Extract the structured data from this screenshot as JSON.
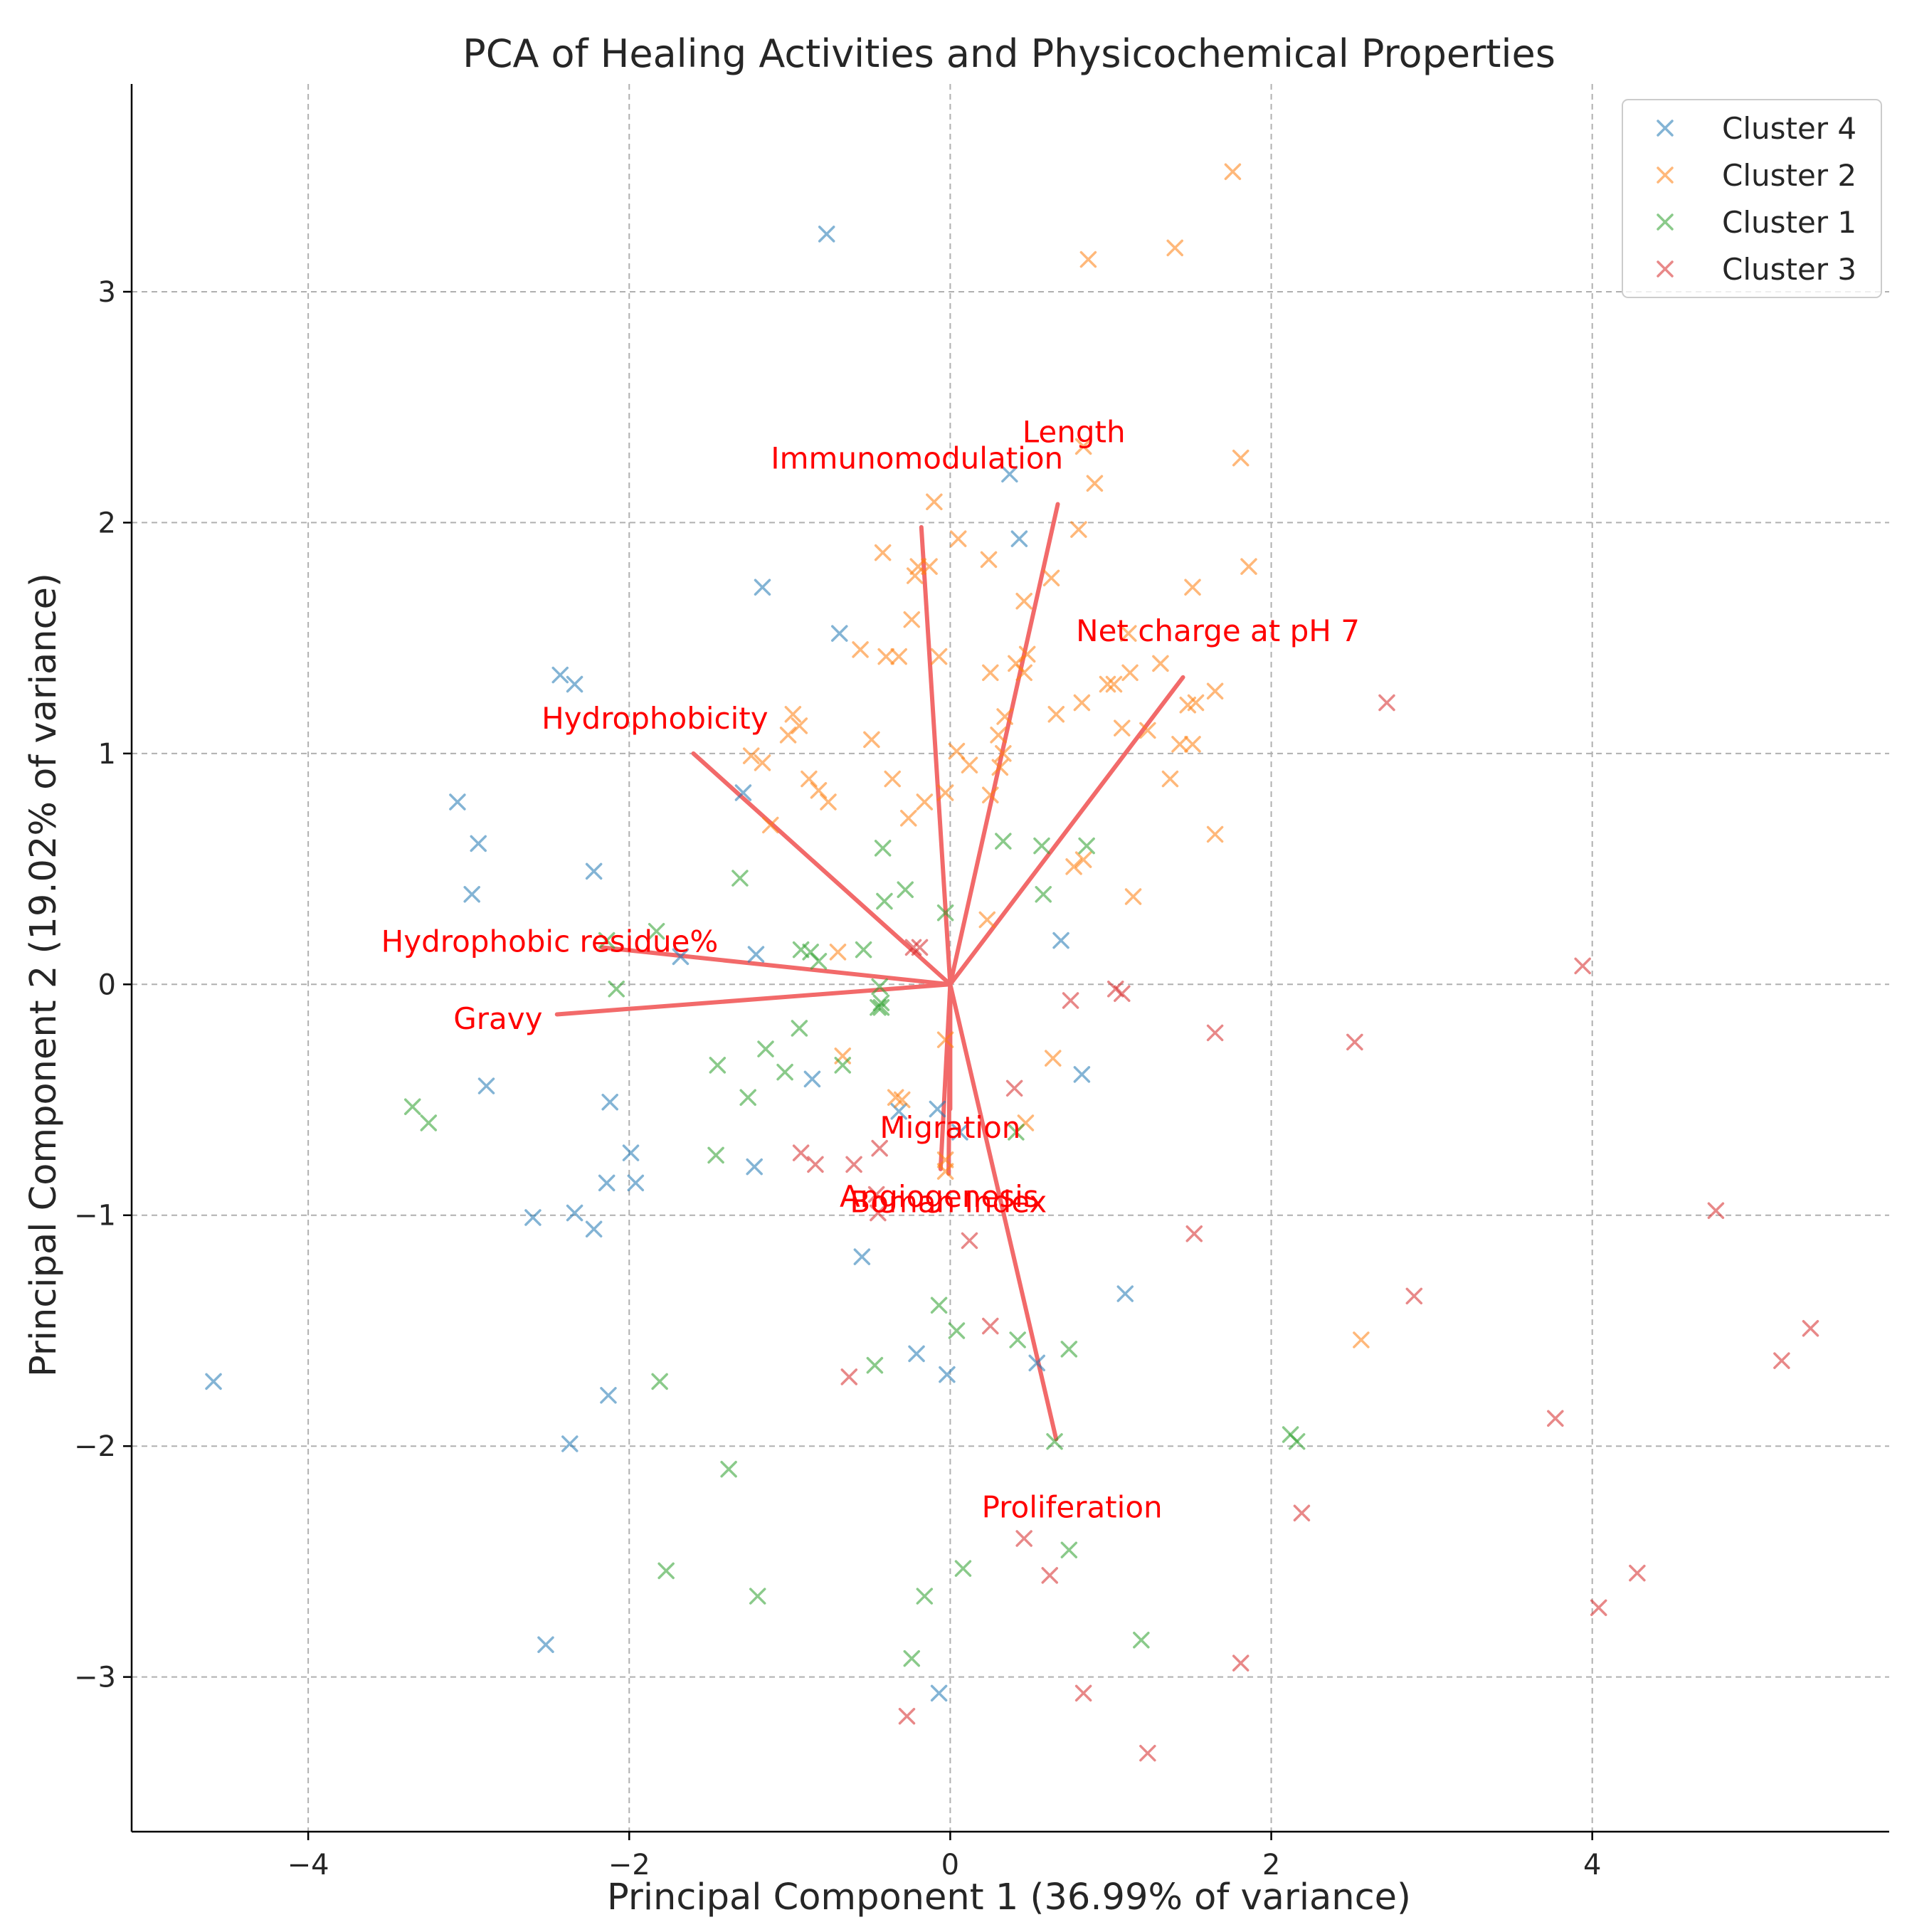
{
  "chart_data": {
    "type": "scatter",
    "title": "PCA of Healing Activities and Physicochemical Properties",
    "xlabel": "Principal Component 1 (36.99% of variance)",
    "ylabel": "Principal Component 2 (19.02% of variance)",
    "xlim": [
      -5.1,
      5.85
    ],
    "ylim": [
      -3.67,
      3.9
    ],
    "xticks": [
      -4,
      -2,
      0,
      2,
      4
    ],
    "yticks": [
      -3,
      -2,
      -1,
      0,
      1,
      2,
      3
    ],
    "xtick_labels": [
      "−4",
      "−2",
      "0",
      "2",
      "4"
    ],
    "ytick_labels": [
      "−3",
      "−2",
      "−1",
      "0",
      "1",
      "2",
      "3"
    ],
    "grid": true,
    "legend_position": "top-right",
    "marker": "x",
    "series": [
      {
        "name": "Cluster 4",
        "color": "#1f77b4",
        "points": [
          [
            -0.77,
            3.25
          ],
          [
            0.37,
            2.21
          ],
          [
            0.43,
            1.93
          ],
          [
            -1.17,
            1.72
          ],
          [
            -0.69,
            1.52
          ],
          [
            -2.43,
            1.34
          ],
          [
            -2.34,
            1.3
          ],
          [
            -1.29,
            0.83
          ],
          [
            -3.07,
            0.79
          ],
          [
            -2.94,
            0.61
          ],
          [
            -2.98,
            0.39
          ],
          [
            -2.22,
            0.49
          ],
          [
            -1.21,
            0.13
          ],
          [
            -1.68,
            0.12
          ],
          [
            0.69,
            0.19
          ],
          [
            -2.89,
            -0.44
          ],
          [
            -2.12,
            -0.51
          ],
          [
            -0.86,
            -0.41
          ],
          [
            0.82,
            -0.39
          ],
          [
            -1.99,
            -0.73
          ],
          [
            -2.14,
            -0.86
          ],
          [
            -1.96,
            -0.86
          ],
          [
            -1.22,
            -0.79
          ],
          [
            -0.32,
            -0.55
          ],
          [
            -0.08,
            -0.54
          ],
          [
            0.06,
            -0.64
          ],
          [
            -2.6,
            -1.01
          ],
          [
            -2.34,
            -0.99
          ],
          [
            -2.22,
            -1.06
          ],
          [
            -0.55,
            -1.18
          ],
          [
            1.09,
            -1.34
          ],
          [
            -4.59,
            -1.72
          ],
          [
            -2.13,
            -1.78
          ],
          [
            -0.21,
            -1.6
          ],
          [
            -0.02,
            -1.69
          ],
          [
            0.54,
            -1.64
          ],
          [
            -2.37,
            -1.99
          ],
          [
            -2.52,
            -2.86
          ],
          [
            -0.07,
            -3.07
          ]
        ]
      },
      {
        "name": "Cluster 2",
        "color": "#ff7f0e",
        "points": [
          [
            1.76,
            3.52
          ],
          [
            1.4,
            3.19
          ],
          [
            0.86,
            3.14
          ],
          [
            0.83,
            2.33
          ],
          [
            1.81,
            2.28
          ],
          [
            0.9,
            2.17
          ],
          [
            -0.1,
            2.09
          ],
          [
            0.8,
            1.97
          ],
          [
            0.05,
            1.93
          ],
          [
            -0.42,
            1.87
          ],
          [
            0.24,
            1.84
          ],
          [
            1.86,
            1.81
          ],
          [
            -0.13,
            1.81
          ],
          [
            -0.22,
            1.77
          ],
          [
            -0.2,
            1.81
          ],
          [
            0.63,
            1.76
          ],
          [
            1.51,
            1.72
          ],
          [
            0.46,
            1.66
          ],
          [
            -0.24,
            1.58
          ],
          [
            1.11,
            1.52
          ],
          [
            -0.56,
            1.45
          ],
          [
            -0.4,
            1.42
          ],
          [
            -0.32,
            1.42
          ],
          [
            -0.07,
            1.42
          ],
          [
            0.48,
            1.43
          ],
          [
            0.25,
            1.35
          ],
          [
            0.46,
            1.35
          ],
          [
            0.41,
            1.39
          ],
          [
            1.31,
            1.39
          ],
          [
            1.12,
            1.35
          ],
          [
            0.98,
            1.3
          ],
          [
            1.02,
            1.3
          ],
          [
            1.65,
            1.27
          ],
          [
            1.48,
            1.21
          ],
          [
            1.53,
            1.22
          ],
          [
            0.34,
            1.16
          ],
          [
            0.66,
            1.17
          ],
          [
            0.82,
            1.22
          ],
          [
            -0.98,
            1.17
          ],
          [
            -0.94,
            1.12
          ],
          [
            -1.01,
            1.08
          ],
          [
            1.07,
            1.11
          ],
          [
            1.23,
            1.1
          ],
          [
            0.3,
            1.08
          ],
          [
            -0.49,
            1.06
          ],
          [
            1.43,
            1.04
          ],
          [
            1.51,
            1.04
          ],
          [
            0.04,
            1.01
          ],
          [
            0.33,
            1.0
          ],
          [
            -1.24,
            0.99
          ],
          [
            -1.17,
            0.96
          ],
          [
            0.12,
            0.95
          ],
          [
            0.31,
            0.94
          ],
          [
            -0.88,
            0.89
          ],
          [
            -0.36,
            0.89
          ],
          [
            1.37,
            0.89
          ],
          [
            -0.82,
            0.84
          ],
          [
            -0.03,
            0.83
          ],
          [
            0.25,
            0.82
          ],
          [
            -0.76,
            0.79
          ],
          [
            -0.16,
            0.79
          ],
          [
            -0.26,
            0.72
          ],
          [
            1.65,
            0.65
          ],
          [
            -1.12,
            0.69
          ],
          [
            0.77,
            0.51
          ],
          [
            0.83,
            0.54
          ],
          [
            1.14,
            0.38
          ],
          [
            0.23,
            0.28
          ],
          [
            -0.7,
            0.14
          ],
          [
            -0.67,
            -0.31
          ],
          [
            0.64,
            -0.32
          ],
          [
            -0.03,
            -0.24
          ],
          [
            -0.34,
            -0.49
          ],
          [
            -0.3,
            -0.5
          ],
          [
            0.47,
            -0.6
          ],
          [
            -0.03,
            -0.81
          ],
          [
            -0.03,
            -0.76
          ],
          [
            2.56,
            -1.54
          ]
        ]
      },
      {
        "name": "Cluster 1",
        "color": "#2ca02c",
        "points": [
          [
            0.33,
            0.62
          ],
          [
            0.57,
            0.6
          ],
          [
            0.85,
            0.6
          ],
          [
            -0.42,
            0.59
          ],
          [
            -1.31,
            0.46
          ],
          [
            -0.28,
            0.41
          ],
          [
            -0.41,
            0.36
          ],
          [
            0.58,
            0.39
          ],
          [
            -0.03,
            0.31
          ],
          [
            -1.83,
            0.23
          ],
          [
            -2.14,
            0.19
          ],
          [
            -0.93,
            0.15
          ],
          [
            -0.87,
            0.14
          ],
          [
            -0.54,
            0.15
          ],
          [
            -0.82,
            0.1
          ],
          [
            -0.44,
            -0.01
          ],
          [
            -0.43,
            -0.08
          ],
          [
            -0.45,
            -0.1
          ],
          [
            -0.43,
            -0.1
          ],
          [
            -2.08,
            -0.02
          ],
          [
            -0.94,
            -0.19
          ],
          [
            -1.15,
            -0.28
          ],
          [
            -1.45,
            -0.35
          ],
          [
            -1.03,
            -0.38
          ],
          [
            -0.67,
            -0.35
          ],
          [
            -1.26,
            -0.49
          ],
          [
            -3.35,
            -0.53
          ],
          [
            -3.25,
            -0.6
          ],
          [
            0.41,
            -0.64
          ],
          [
            -1.46,
            -0.74
          ],
          [
            -0.07,
            -1.39
          ],
          [
            0.04,
            -1.5
          ],
          [
            0.42,
            -1.54
          ],
          [
            0.74,
            -1.58
          ],
          [
            -0.47,
            -1.65
          ],
          [
            -1.81,
            -1.72
          ],
          [
            2.12,
            -1.95
          ],
          [
            2.16,
            -1.98
          ],
          [
            0.65,
            -1.98
          ],
          [
            -1.38,
            -2.1
          ],
          [
            0.74,
            -2.45
          ],
          [
            0.08,
            -2.53
          ],
          [
            -1.77,
            -2.54
          ],
          [
            -1.2,
            -2.65
          ],
          [
            -0.16,
            -2.65
          ],
          [
            1.19,
            -2.84
          ],
          [
            -0.24,
            -2.92
          ]
        ]
      },
      {
        "name": "Cluster 3",
        "color": "#d62728",
        "points": [
          [
            2.72,
            1.22
          ],
          [
            3.94,
            0.08
          ],
          [
            -0.23,
            0.16
          ],
          [
            -0.19,
            0.16
          ],
          [
            1.03,
            -0.02
          ],
          [
            1.07,
            -0.04
          ],
          [
            0.75,
            -0.07
          ],
          [
            1.65,
            -0.21
          ],
          [
            2.52,
            -0.25
          ],
          [
            0.4,
            -0.45
          ],
          [
            -0.93,
            -0.73
          ],
          [
            -0.44,
            -0.71
          ],
          [
            -0.84,
            -0.78
          ],
          [
            -0.6,
            -0.78
          ],
          [
            -0.46,
            -0.91
          ],
          [
            -0.45,
            -0.99
          ],
          [
            0.12,
            -1.11
          ],
          [
            1.52,
            -1.08
          ],
          [
            4.77,
            -0.98
          ],
          [
            2.89,
            -1.35
          ],
          [
            0.25,
            -1.48
          ],
          [
            5.36,
            -1.49
          ],
          [
            5.18,
            -1.63
          ],
          [
            -0.63,
            -1.7
          ],
          [
            3.77,
            -1.88
          ],
          [
            2.19,
            -2.29
          ],
          [
            0.46,
            -2.4
          ],
          [
            0.62,
            -2.56
          ],
          [
            4.28,
            -2.55
          ],
          [
            4.04,
            -2.7
          ],
          [
            1.81,
            -2.94
          ],
          [
            0.83,
            -3.07
          ],
          [
            -0.27,
            -3.17
          ],
          [
            1.23,
            -3.33
          ]
        ]
      }
    ],
    "loadings": [
      {
        "name": "Length",
        "x": 0.67,
        "y": 2.08
      },
      {
        "name": "Immunomodulation",
        "x": -0.18,
        "y": 1.98
      },
      {
        "name": "Net charge at pH 7",
        "x": 1.45,
        "y": 1.33
      },
      {
        "name": "Hydrophobicity",
        "x": -1.6,
        "y": 1.0
      },
      {
        "name": "Hydrophobic residue%",
        "x": -2.17,
        "y": 0.16
      },
      {
        "name": "Gravy",
        "x": -2.45,
        "y": -0.13
      },
      {
        "name": "Migration",
        "x": 0.0,
        "y": -0.54
      },
      {
        "name": "Angiogenesis",
        "x": -0.06,
        "y": -0.8
      },
      {
        "name": "Boman Index",
        "x": -0.01,
        "y": -0.82
      },
      {
        "name": "Proliferation",
        "x": 0.66,
        "y": -1.97
      }
    ]
  }
}
